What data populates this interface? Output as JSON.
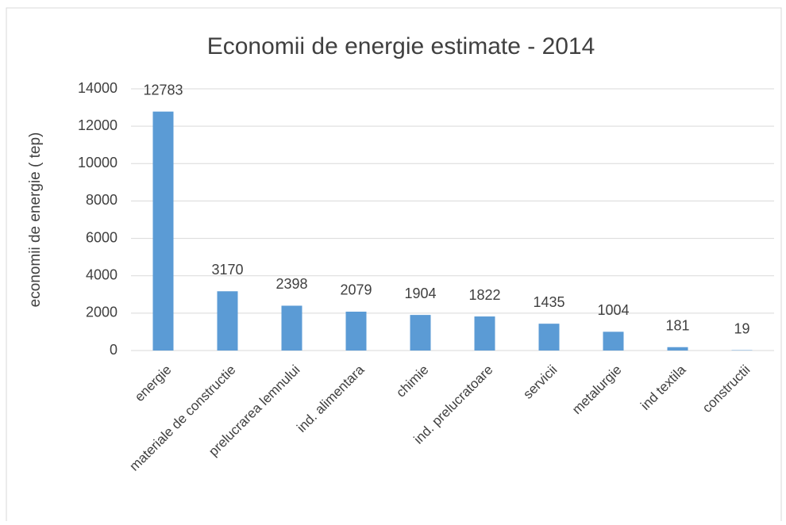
{
  "chart_data": {
    "type": "bar",
    "title": "Economii de energie estimate - 2014",
    "y_label": "economii de energie  ( tep)",
    "categories": [
      "energie",
      "materiale de constructie",
      "prelucrarea lemnului",
      "ind. alimentara",
      "chimie",
      "ind. prelucratoare",
      "servicii",
      "metalurgie",
      "ind textila",
      "constructii"
    ],
    "values": [
      12783,
      3170,
      2398,
      2079,
      1904,
      1822,
      1435,
      1004,
      181,
      19
    ],
    "color": "#5b9bd5",
    "ylim": [
      0,
      14000
    ],
    "yticks": [
      0,
      2000,
      4000,
      6000,
      8000,
      10000,
      12000,
      14000
    ],
    "grid": true
  }
}
